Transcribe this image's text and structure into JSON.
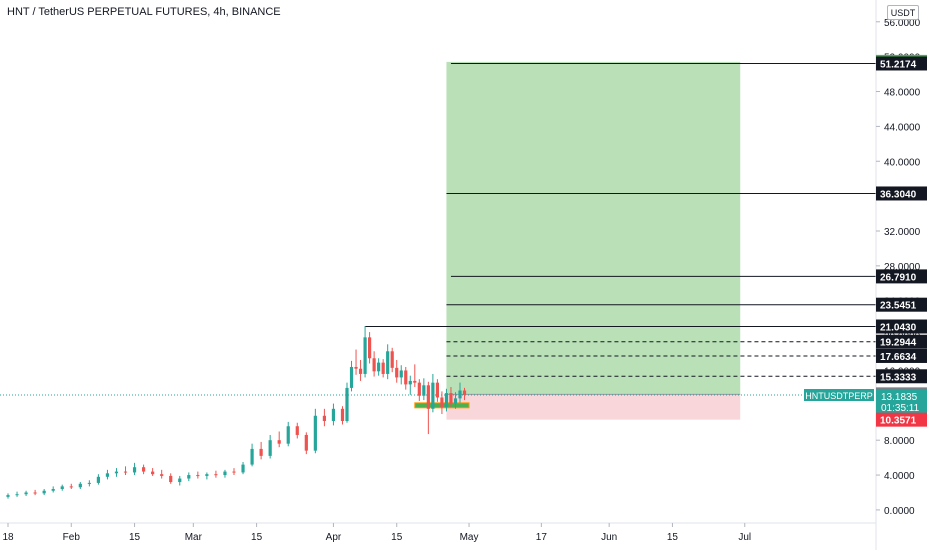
{
  "header": {
    "title": "HNT / TetherUS PERPETUAL FUTURES, 4h, BINANCE",
    "currency_button": "USDT"
  },
  "colors": {
    "profit_zone": "#b9e0b6",
    "loss_zone": "#f9d6d9",
    "candle_up": "#26a69a",
    "candle_down": "#ef5350",
    "price_tag": "#26a69a",
    "stop_tag": "#f23645",
    "target_green_tag": "#4caf50",
    "level_tag": "#131722",
    "entry_tag": "#7b7f87"
  },
  "chart_data": {
    "type": "candlestick",
    "symbol": "HNTUSDTPERP",
    "y_ticks": [
      "0.0000",
      "4.0000",
      "8.0000",
      "12.0000",
      "16.0000",
      "20.0000",
      "24.0000",
      "28.0000",
      "32.0000",
      "36.0000",
      "40.0000",
      "44.0000",
      "48.0000",
      "52.0000",
      "56.0000"
    ],
    "x_ticks": [
      {
        "label": "18",
        "idx": 0
      },
      {
        "label": "Feb",
        "idx": 14
      },
      {
        "label": "15",
        "idx": 28
      },
      {
        "label": "Mar",
        "idx": 41
      },
      {
        "label": "15",
        "idx": 55
      },
      {
        "label": "Apr",
        "idx": 72
      },
      {
        "label": "15",
        "idx": 86
      },
      {
        "label": "May",
        "idx": 102
      },
      {
        "label": "17",
        "idx": 118
      },
      {
        "label": "Jun",
        "idx": 133
      },
      {
        "label": "15",
        "idx": 147
      },
      {
        "label": "Jul",
        "idx": 163
      }
    ],
    "ylim": [
      -1.5,
      58.5
    ],
    "last_price": 13.1835,
    "countdown": "01:35:11",
    "position": {
      "type": "long",
      "entry": 13.2578,
      "target": 51.3998,
      "stop": 10.3571,
      "start_idx": 97,
      "end_idx": 162
    },
    "levels": [
      {
        "value": "51.2174",
        "style": "solid",
        "start_idx": 98
      },
      {
        "value": "36.3040",
        "style": "solid",
        "start_idx": 97
      },
      {
        "value": "26.7910",
        "style": "solid",
        "start_idx": 98
      },
      {
        "value": "23.5451",
        "style": "solid",
        "start_idx": 97
      },
      {
        "value": "21.0430",
        "style": "solid",
        "start_idx": 79
      },
      {
        "value": "19.2944",
        "style": "dashed",
        "start_idx": 97
      },
      {
        "value": "17.6634",
        "style": "dashed",
        "start_idx": 97
      },
      {
        "value": "15.3333",
        "style": "dashed",
        "start_idx": 97
      }
    ],
    "entry_bar": {
      "value": 12.0,
      "start_idx": 90,
      "end_idx": 102
    },
    "candles": [
      {
        "i": 0,
        "o": 1.5,
        "h": 1.9,
        "l": 1.3,
        "c": 1.7
      },
      {
        "i": 2,
        "o": 1.7,
        "h": 2.1,
        "l": 1.5,
        "c": 1.8
      },
      {
        "i": 4,
        "o": 1.8,
        "h": 2.2,
        "l": 1.6,
        "c": 2.0
      },
      {
        "i": 6,
        "o": 2.0,
        "h": 2.3,
        "l": 1.7,
        "c": 1.9
      },
      {
        "i": 8,
        "o": 1.9,
        "h": 2.4,
        "l": 1.7,
        "c": 2.2
      },
      {
        "i": 10,
        "o": 2.2,
        "h": 2.7,
        "l": 2.0,
        "c": 2.4
      },
      {
        "i": 12,
        "o": 2.4,
        "h": 2.9,
        "l": 2.2,
        "c": 2.7
      },
      {
        "i": 14,
        "o": 2.7,
        "h": 3.0,
        "l": 2.4,
        "c": 2.6
      },
      {
        "i": 16,
        "o": 2.6,
        "h": 3.2,
        "l": 2.4,
        "c": 3.0
      },
      {
        "i": 18,
        "o": 3.0,
        "h": 3.4,
        "l": 2.7,
        "c": 3.1
      },
      {
        "i": 20,
        "o": 3.1,
        "h": 4.1,
        "l": 2.9,
        "c": 3.8
      },
      {
        "i": 22,
        "o": 3.8,
        "h": 4.6,
        "l": 3.5,
        "c": 4.2
      },
      {
        "i": 24,
        "o": 4.2,
        "h": 4.8,
        "l": 3.8,
        "c": 4.4
      },
      {
        "i": 26,
        "o": 4.4,
        "h": 5.0,
        "l": 4.0,
        "c": 4.3
      },
      {
        "i": 28,
        "o": 4.3,
        "h": 5.4,
        "l": 4.0,
        "c": 4.9
      },
      {
        "i": 30,
        "o": 4.9,
        "h": 5.2,
        "l": 4.1,
        "c": 4.4
      },
      {
        "i": 32,
        "o": 4.4,
        "h": 4.8,
        "l": 3.9,
        "c": 4.1
      },
      {
        "i": 34,
        "o": 4.1,
        "h": 4.6,
        "l": 3.6,
        "c": 3.9
      },
      {
        "i": 36,
        "o": 3.9,
        "h": 4.2,
        "l": 3.0,
        "c": 3.2
      },
      {
        "i": 38,
        "o": 3.2,
        "h": 3.9,
        "l": 2.8,
        "c": 3.6
      },
      {
        "i": 40,
        "o": 3.6,
        "h": 4.3,
        "l": 3.3,
        "c": 4.0
      },
      {
        "i": 42,
        "o": 4.0,
        "h": 4.4,
        "l": 3.6,
        "c": 3.9
      },
      {
        "i": 44,
        "o": 3.9,
        "h": 4.3,
        "l": 3.5,
        "c": 4.1
      },
      {
        "i": 46,
        "o": 4.1,
        "h": 4.5,
        "l": 3.7,
        "c": 4.0
      },
      {
        "i": 48,
        "o": 4.0,
        "h": 4.6,
        "l": 3.7,
        "c": 4.4
      },
      {
        "i": 50,
        "o": 4.4,
        "h": 4.8,
        "l": 4.0,
        "c": 4.3
      },
      {
        "i": 52,
        "o": 4.3,
        "h": 5.5,
        "l": 4.1,
        "c": 5.2
      },
      {
        "i": 54,
        "o": 5.2,
        "h": 7.6,
        "l": 5.0,
        "c": 7.0
      },
      {
        "i": 56,
        "o": 7.0,
        "h": 7.8,
        "l": 5.8,
        "c": 6.2
      },
      {
        "i": 58,
        "o": 6.2,
        "h": 8.6,
        "l": 5.9,
        "c": 8.0
      },
      {
        "i": 60,
        "o": 8.0,
        "h": 9.0,
        "l": 7.2,
        "c": 7.6
      },
      {
        "i": 62,
        "o": 7.6,
        "h": 10.1,
        "l": 7.3,
        "c": 9.6
      },
      {
        "i": 64,
        "o": 9.6,
        "h": 10.0,
        "l": 8.2,
        "c": 8.6
      },
      {
        "i": 66,
        "o": 8.6,
        "h": 8.9,
        "l": 6.4,
        "c": 6.8
      },
      {
        "i": 68,
        "o": 6.8,
        "h": 11.6,
        "l": 6.5,
        "c": 10.8
      },
      {
        "i": 70,
        "o": 10.8,
        "h": 11.6,
        "l": 9.6,
        "c": 10.2
      },
      {
        "i": 72,
        "o": 10.2,
        "h": 12.2,
        "l": 9.7,
        "c": 11.6
      },
      {
        "i": 74,
        "o": 11.6,
        "h": 11.9,
        "l": 9.8,
        "c": 10.2
      },
      {
        "i": 75,
        "o": 10.2,
        "h": 14.6,
        "l": 10.0,
        "c": 14.0
      },
      {
        "i": 76,
        "o": 14.0,
        "h": 17.1,
        "l": 13.6,
        "c": 16.4
      },
      {
        "i": 77,
        "o": 16.4,
        "h": 18.4,
        "l": 15.5,
        "c": 16.2
      },
      {
        "i": 78,
        "o": 16.2,
        "h": 17.2,
        "l": 14.8,
        "c": 15.6
      },
      {
        "i": 79,
        "o": 15.6,
        "h": 21.1,
        "l": 15.2,
        "c": 19.8
      },
      {
        "i": 80,
        "o": 19.8,
        "h": 20.4,
        "l": 16.8,
        "c": 17.4
      },
      {
        "i": 81,
        "o": 17.4,
        "h": 18.2,
        "l": 15.3,
        "c": 15.9
      },
      {
        "i": 82,
        "o": 15.9,
        "h": 17.4,
        "l": 15.4,
        "c": 16.9
      },
      {
        "i": 83,
        "o": 16.9,
        "h": 17.3,
        "l": 15.2,
        "c": 15.6
      },
      {
        "i": 84,
        "o": 15.6,
        "h": 19.0,
        "l": 15.0,
        "c": 18.2
      },
      {
        "i": 85,
        "o": 18.2,
        "h": 18.6,
        "l": 15.8,
        "c": 16.3
      },
      {
        "i": 86,
        "o": 16.3,
        "h": 17.2,
        "l": 14.6,
        "c": 15.2
      },
      {
        "i": 87,
        "o": 15.2,
        "h": 16.6,
        "l": 14.4,
        "c": 16.0
      },
      {
        "i": 88,
        "o": 16.0,
        "h": 16.4,
        "l": 13.8,
        "c": 14.4
      },
      {
        "i": 89,
        "o": 14.4,
        "h": 15.4,
        "l": 13.2,
        "c": 14.8
      },
      {
        "i": 90,
        "o": 14.8,
        "h": 16.7,
        "l": 14.1,
        "c": 14.6
      },
      {
        "i": 91,
        "o": 14.6,
        "h": 15.0,
        "l": 12.5,
        "c": 13.1
      },
      {
        "i": 92,
        "o": 13.1,
        "h": 15.1,
        "l": 12.6,
        "c": 14.3
      },
      {
        "i": 93,
        "o": 14.3,
        "h": 14.7,
        "l": 8.7,
        "c": 11.6
      },
      {
        "i": 94,
        "o": 11.6,
        "h": 15.6,
        "l": 11.2,
        "c": 14.6
      },
      {
        "i": 95,
        "o": 14.6,
        "h": 15.0,
        "l": 12.4,
        "c": 12.9
      },
      {
        "i": 96,
        "o": 12.9,
        "h": 13.6,
        "l": 11.0,
        "c": 11.8
      },
      {
        "i": 97,
        "o": 11.8,
        "h": 13.9,
        "l": 11.3,
        "c": 13.4
      },
      {
        "i": 98,
        "o": 13.4,
        "h": 14.1,
        "l": 11.8,
        "c": 12.2
      },
      {
        "i": 99,
        "o": 12.2,
        "h": 13.5,
        "l": 11.6,
        "c": 12.8
      },
      {
        "i": 100,
        "o": 12.8,
        "h": 14.6,
        "l": 12.3,
        "c": 13.7
      },
      {
        "i": 101,
        "o": 13.7,
        "h": 14.0,
        "l": 12.6,
        "c": 13.18
      }
    ]
  }
}
